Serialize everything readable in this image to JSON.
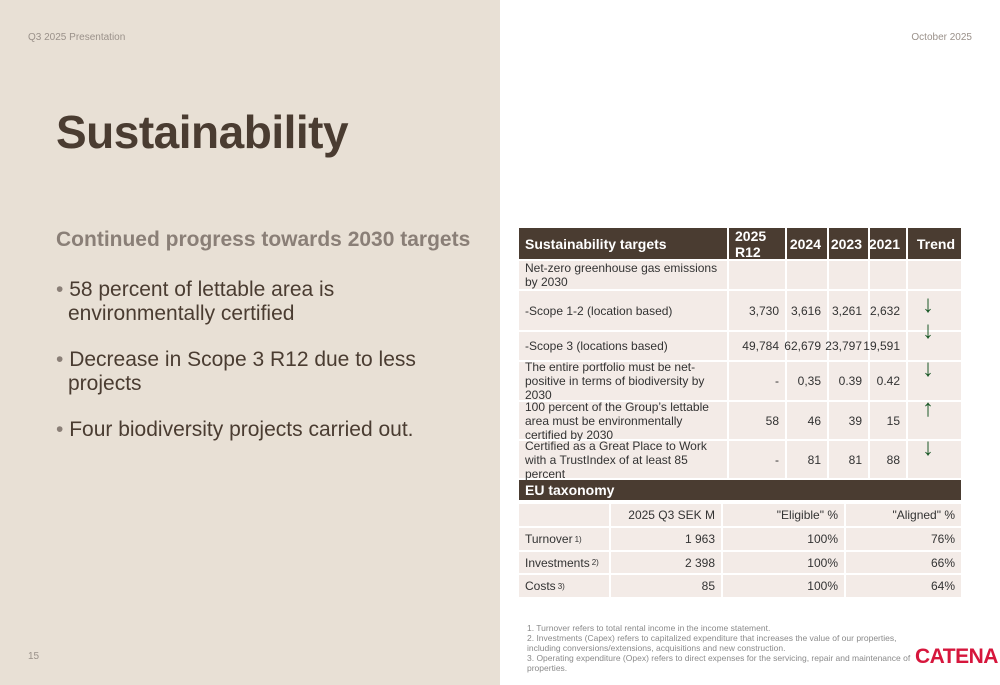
{
  "header": {
    "left": "Q3 2025 Presentation",
    "right": "October 2025"
  },
  "page_number": "15",
  "title": "Sustainability",
  "subtitle": "Continued progress towards 2030 targets",
  "bullets": [
    "58 percent of lettable area is environmentally certified",
    "Decrease in Scope 3 R12 due to less projects",
    "Four biodiversity projects carried out."
  ],
  "targets": {
    "headers": [
      "Sustainability targets",
      "2025 R12",
      "2024",
      "2023",
      "2021",
      "Trend"
    ],
    "rows": [
      {
        "label": "Net-zero greenhouse gas emissions by 2030",
        "values": [
          "",
          "",
          "",
          ""
        ],
        "trend": ""
      },
      {
        "label": "-Scope 1-2 (location based)",
        "values": [
          "3,730",
          "3,616",
          "3,261",
          "2,632"
        ],
        "trend": "down"
      },
      {
        "label": "-Scope 3 (locations based)",
        "values": [
          "49,784",
          "62,679",
          "23,797",
          "19,591"
        ],
        "trend": "down"
      },
      {
        "label": "The entire portfolio must be net-positive in terms of biodiversity by 2030",
        "values": [
          "-",
          "0,35",
          "0.39",
          "0.42"
        ],
        "trend": "down"
      },
      {
        "label": "100 percent of the Group’s lettable area must be environmentally certified by 2030",
        "values": [
          "58",
          "46",
          "39",
          "15"
        ],
        "trend": "up"
      },
      {
        "label": "Certified as a Great Place to Work with a TrustIndex of at least 85 percent",
        "values": [
          "-",
          "81",
          "81",
          "88"
        ],
        "trend": "down"
      }
    ],
    "trend_color": "#1d5a2a"
  },
  "eu": {
    "title": "EU taxonomy",
    "headers": [
      "",
      "2025 Q3 SEK M",
      "\"Eligible\" %",
      "\"Aligned\" %"
    ],
    "rows": [
      {
        "label": "Turnover",
        "note": "1)",
        "values": [
          "1 963",
          "100%",
          "76%"
        ]
      },
      {
        "label": "Investments",
        "note": "2)",
        "values": [
          "2 398",
          "100%",
          "66%"
        ]
      },
      {
        "label": "Costs",
        "note": "3)",
        "values": [
          "85",
          "100%",
          "64%"
        ]
      }
    ]
  },
  "footnotes": [
    "1. Turnover refers to total rental income in the income statement.",
    "2. Investments (Capex) refers to capitalized expenditure that increases the value of our properties, including conversions/extensions, acquisitions and new construction.",
    "3. Operating expenditure (Opex) refers to direct expenses for the servicing, repair and maintenance of properties."
  ],
  "logo": "CATENA"
}
